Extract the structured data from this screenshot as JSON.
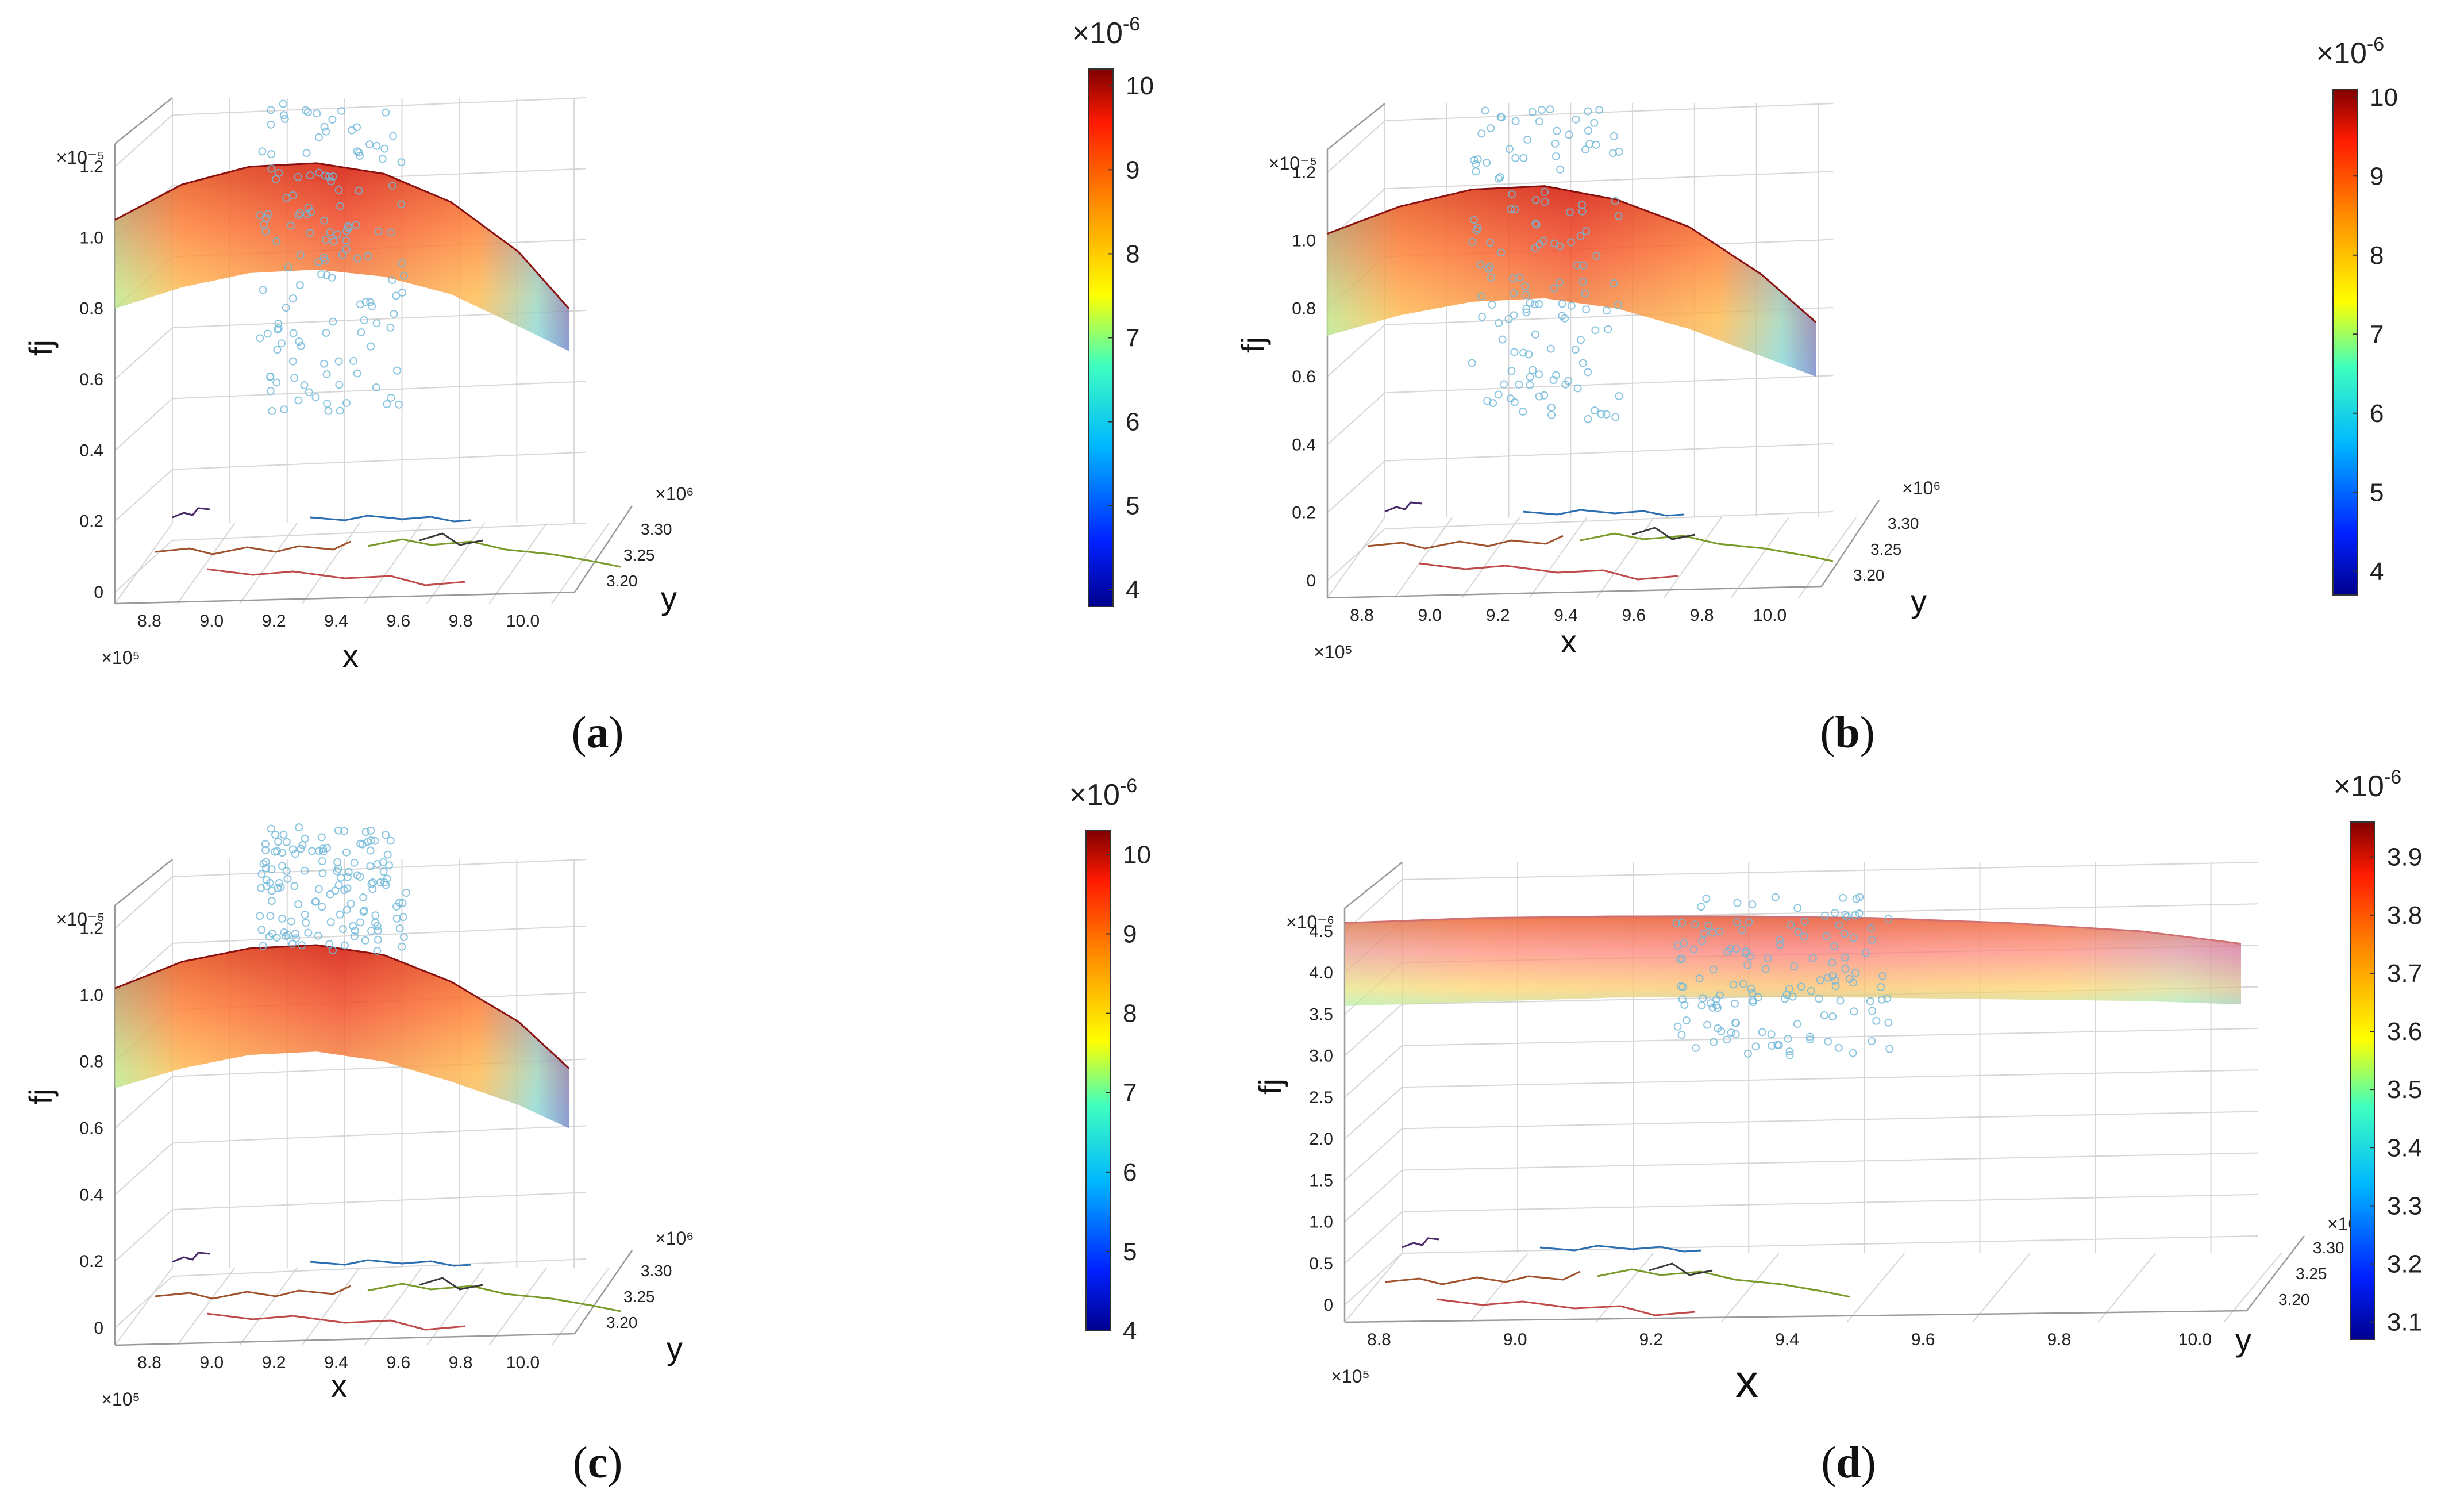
{
  "figure": {
    "panels": [
      {
        "id": "a",
        "label": "(a)"
      },
      {
        "id": "b",
        "label": "(b)"
      },
      {
        "id": "c",
        "label": "(c)"
      },
      {
        "id": "d",
        "label": "(d)"
      }
    ]
  },
  "chart_data": [
    {
      "panel": "a",
      "type": "surface",
      "xlabel": "x",
      "ylabel": "y",
      "zlabel": "fj",
      "x_ticks": [
        "8.8",
        "9.0",
        "9.2",
        "9.4",
        "9.6",
        "9.8",
        "10.0"
      ],
      "x_exponent": "×10⁵",
      "y_ticks": [
        "3.20",
        "3.25",
        "3.30"
      ],
      "y_exponent": "×10⁶",
      "z_ticks": [
        "0",
        "0.2",
        "0.4",
        "0.6",
        "0.8",
        "1.0",
        "1.2"
      ],
      "z_exponent": "×10⁻⁵",
      "colorbar": {
        "ticks": [
          "4",
          "5",
          "6",
          "7",
          "8",
          "9",
          "10"
        ],
        "range": [
          3.8,
          10.2
        ],
        "exponent": "×10-6"
      },
      "surface_profile": {
        "x": [
          8.7,
          8.9,
          9.1,
          9.3,
          9.5,
          9.7,
          9.9,
          10.05
        ],
        "fj_front": [
          0.8,
          0.86,
          0.9,
          0.91,
          0.89,
          0.84,
          0.75,
          0.68
        ],
        "fj_back": [
          1.05,
          1.15,
          1.2,
          1.21,
          1.18,
          1.1,
          0.96,
          0.8
        ]
      }
    },
    {
      "panel": "b",
      "type": "surface",
      "xlabel": "x",
      "ylabel": "y",
      "zlabel": "fj",
      "x_ticks": [
        "8.8",
        "9.0",
        "9.2",
        "9.4",
        "9.6",
        "9.8",
        "10.0"
      ],
      "x_exponent": "×10⁵",
      "y_ticks": [
        "3.20",
        "3.25",
        "3.30"
      ],
      "y_exponent": "×10⁶",
      "z_ticks": [
        "0",
        "0.2",
        "0.4",
        "0.6",
        "0.8",
        "1.0",
        "1.2"
      ],
      "z_exponent": "×10⁻⁵",
      "colorbar": {
        "ticks": [
          "4",
          "5",
          "6",
          "7",
          "8",
          "9",
          "10"
        ],
        "range": [
          3.7,
          10.1
        ],
        "exponent": "×10-6"
      },
      "surface_profile": {
        "x": [
          8.7,
          8.9,
          9.1,
          9.3,
          9.5,
          9.7,
          9.9,
          10.05
        ],
        "fj_front": [
          0.72,
          0.78,
          0.82,
          0.83,
          0.8,
          0.74,
          0.66,
          0.6
        ],
        "fj_back": [
          1.02,
          1.1,
          1.15,
          1.16,
          1.12,
          1.04,
          0.9,
          0.76
        ]
      }
    },
    {
      "panel": "c",
      "type": "surface",
      "xlabel": "x",
      "ylabel": "y",
      "zlabel": "fj",
      "x_ticks": [
        "8.8",
        "9.0",
        "9.2",
        "9.4",
        "9.6",
        "9.8",
        "10.0"
      ],
      "x_exponent": "×10⁵",
      "y_ticks": [
        "3.20",
        "3.25",
        "3.30"
      ],
      "y_exponent": "×10⁶",
      "z_ticks": [
        "0",
        "0.2",
        "0.4",
        "0.6",
        "0.8",
        "1.0",
        "1.2"
      ],
      "z_exponent": "×10⁻⁵",
      "colorbar": {
        "ticks": [
          "4",
          "5",
          "6",
          "7",
          "8",
          "9",
          "10"
        ],
        "range": [
          4.0,
          10.3
        ],
        "exponent": "×10-6"
      },
      "surface_profile": {
        "x": [
          8.7,
          8.9,
          9.1,
          9.3,
          9.5,
          9.7,
          9.9,
          10.05
        ],
        "fj_front": [
          0.72,
          0.78,
          0.82,
          0.83,
          0.8,
          0.74,
          0.67,
          0.6
        ],
        "fj_back": [
          1.02,
          1.1,
          1.14,
          1.15,
          1.12,
          1.04,
          0.92,
          0.78
        ]
      }
    },
    {
      "panel": "d",
      "type": "surface",
      "xlabel": "x",
      "ylabel": "y",
      "zlabel": "fj",
      "x_ticks": [
        "8.8",
        "9.0",
        "9.2",
        "9.4",
        "9.6",
        "9.8",
        "10.0"
      ],
      "x_exponent": "×10⁵",
      "y_ticks": [
        "3.20",
        "3.25",
        "3.30"
      ],
      "y_exponent": "×10⁶",
      "z_ticks": [
        "0",
        "0.5",
        "1.0",
        "1.5",
        "2.0",
        "2.5",
        "3.0",
        "3.5",
        "4.0",
        "4.5"
      ],
      "z_exponent": "×10⁻⁶",
      "colorbar": {
        "ticks": [
          "3.1",
          "3.2",
          "3.3",
          "3.4",
          "3.5",
          "3.6",
          "3.7",
          "3.8",
          "3.9"
        ],
        "range": [
          3.07,
          3.96
        ],
        "exponent": "×10-6"
      },
      "surface_profile": {
        "x": [
          8.7,
          8.9,
          9.1,
          9.3,
          9.5,
          9.7,
          9.9,
          10.05
        ],
        "fj_front": [
          3.6,
          3.65,
          3.7,
          3.71,
          3.7,
          3.68,
          3.66,
          3.62
        ],
        "fj_back": [
          4.6,
          4.66,
          4.68,
          4.68,
          4.66,
          4.6,
          4.5,
          4.35
        ]
      }
    }
  ]
}
